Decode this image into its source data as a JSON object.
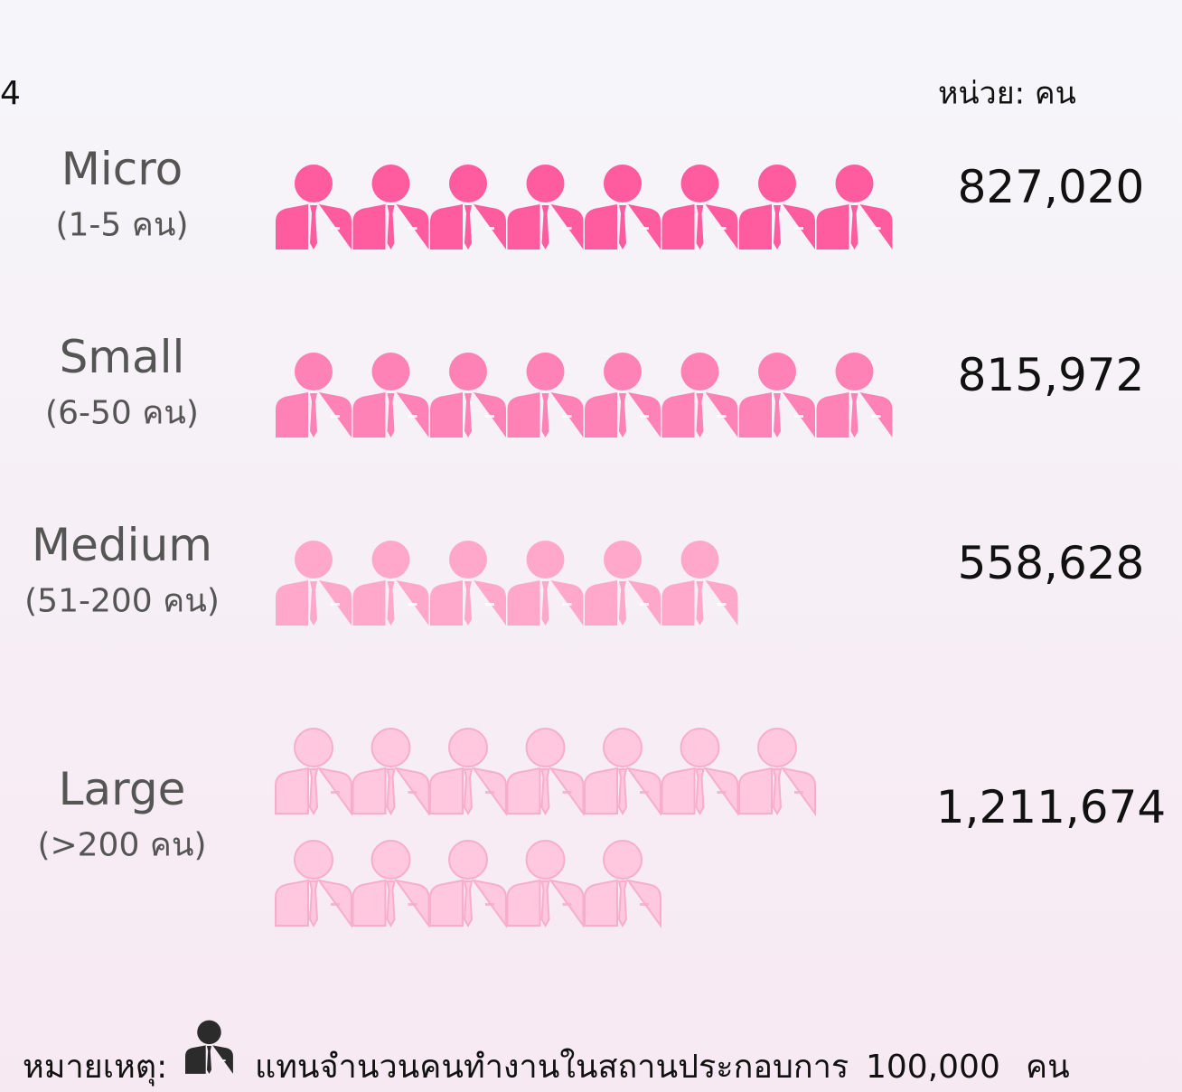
{
  "chart_data": {
    "type": "pictograph",
    "heading": "4",
    "unit_caption": "หน่วย: คน",
    "categories": [
      "Micro",
      "Small",
      "Medium",
      "Large"
    ],
    "subcategories": [
      "(1-5 คน)",
      "(6-50 คน)",
      "(51-200 คน)",
      "(>200 คน)"
    ],
    "values": [
      827020,
      815972,
      558628,
      1211674
    ],
    "value_labels": [
      "827,020",
      "815,972",
      "558,628",
      "1,211,674"
    ],
    "colors": [
      "#ff5ca0",
      "#ff82b6",
      "#ffa8cb",
      "#ffc8de"
    ],
    "outline_color": "#f7aecd",
    "note": {
      "prefix": "หมายเหตุ:",
      "text": "แทนจำนวนคนทำงานในสถานประกอบการ",
      "unit": {
        "value": 100000,
        "label": "100,000"
      },
      "suffix": "คน",
      "icon_color": "#2b2b2b"
    }
  }
}
